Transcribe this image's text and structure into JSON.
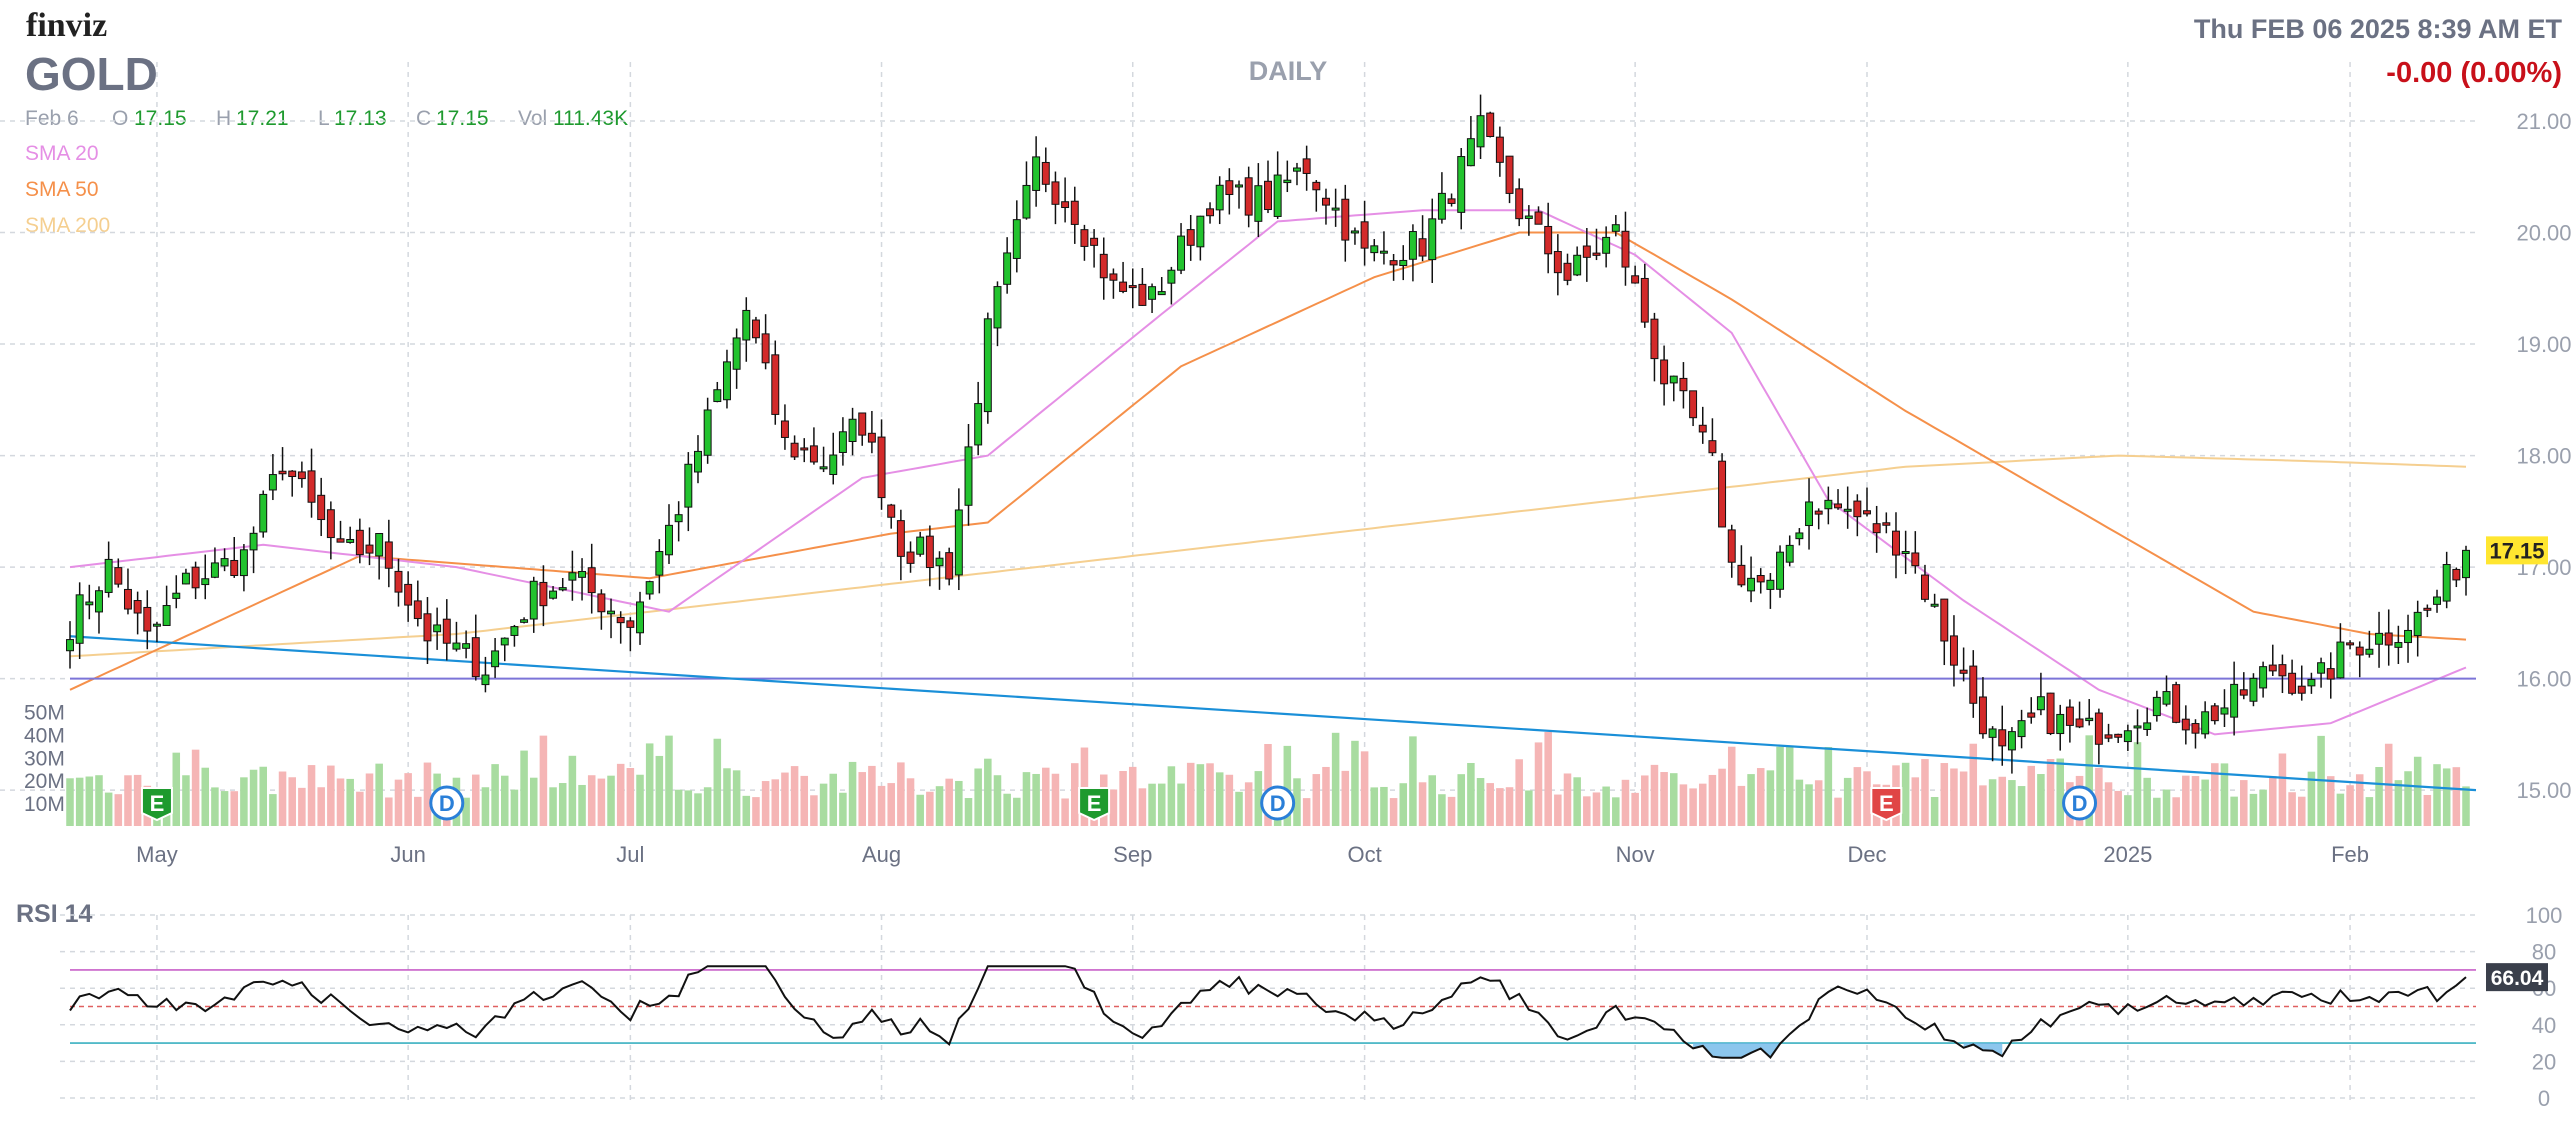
{
  "header": {
    "brand": "finviz",
    "ticker": "GOLD",
    "timeframe": "DAILY",
    "datetime": "Thu FEB 06 2025 8:39 AM ET",
    "change": "-0.00 (0.00%)"
  },
  "quote": {
    "date": "Feb 6",
    "o_label": "O",
    "o": "17.15",
    "h_label": "H",
    "h": "17.21",
    "l_label": "L",
    "l": "17.13",
    "c_label": "C",
    "c": "17.15",
    "vol_label": "Vol",
    "vol": "111.43K"
  },
  "legend": [
    "SMA 20",
    "SMA 50",
    "SMA 200"
  ],
  "colors": {
    "up": "#22c32e",
    "down": "#d32a2a",
    "vol_up": "#a8dca0",
    "vol_down": "#f5b5b5",
    "sma20": "#e58fe5",
    "sma50": "#f5904a",
    "sma200": "#f5cf90",
    "trendline": "#1a8fd8",
    "hline": "#7c74d8",
    "rsi_line": "#111111",
    "rsi_upper": "#c860c8",
    "rsi_mid": "#e06060",
    "rsi_lower": "#3ab0c0",
    "rsi_fill": "#6fb8e8",
    "last_price_bg": "#ffe630",
    "text_muted": "#9aa0ad",
    "brand_dark": "#222222",
    "neg_change": "#c8101a"
  },
  "chart_data": [
    {
      "type": "candlestick",
      "title": "GOLD",
      "x_range": [
        "2025-04-24",
        "2026-02-06"
      ],
      "ylim": [
        14.75,
        21.35
      ],
      "y_ticks": [
        "21.00",
        "20.00",
        "19.00",
        "18.00",
        "17.00",
        "16.00",
        "15.00"
      ],
      "month_labels": [
        "May",
        "Jun",
        "Jul",
        "Aug",
        "Sep",
        "Oct",
        "Nov",
        "Dec",
        "2025",
        "Feb"
      ],
      "last_price": "17.15",
      "horizontal_line": 16.0,
      "trendline": {
        "start": [
          "2025-04-24",
          16.38
        ],
        "end": [
          "2026-02-06",
          15.0
        ]
      },
      "close_anchors": [
        [
          0,
          16.5
        ],
        [
          4,
          17.0
        ],
        [
          8,
          16.35
        ],
        [
          12,
          16.85
        ],
        [
          18,
          17.1
        ],
        [
          22,
          17.95
        ],
        [
          28,
          17.1
        ],
        [
          32,
          17.2
        ],
        [
          37,
          16.4
        ],
        [
          43,
          16.1
        ],
        [
          48,
          16.75
        ],
        [
          52,
          16.9
        ],
        [
          58,
          16.5
        ],
        [
          63,
          17.55
        ],
        [
          70,
          19.3
        ],
        [
          74,
          18.1
        ],
        [
          78,
          17.95
        ],
        [
          82,
          18.3
        ],
        [
          86,
          17.2
        ],
        [
          91,
          17.0
        ],
        [
          95,
          19.1
        ],
        [
          100,
          20.6
        ],
        [
          104,
          20.2
        ],
        [
          108,
          19.5
        ],
        [
          112,
          19.4
        ],
        [
          118,
          20.3
        ],
        [
          124,
          20.3
        ],
        [
          128,
          20.6
        ],
        [
          134,
          19.8
        ],
        [
          140,
          19.9
        ],
        [
          146,
          20.9
        ],
        [
          150,
          20.2
        ],
        [
          155,
          19.6
        ],
        [
          160,
          20.0
        ],
        [
          165,
          18.7
        ],
        [
          168,
          18.3
        ],
        [
          170,
          17.9
        ],
        [
          172,
          17.0
        ],
        [
          176,
          16.8
        ],
        [
          180,
          17.6
        ],
        [
          184,
          17.5
        ],
        [
          190,
          17.2
        ],
        [
          194,
          16.4
        ],
        [
          197,
          15.8
        ],
        [
          200,
          15.3
        ],
        [
          204,
          15.7
        ],
        [
          208,
          15.5
        ],
        [
          212,
          15.6
        ],
        [
          216,
          15.8
        ],
        [
          220,
          15.6
        ],
        [
          224,
          15.8
        ],
        [
          228,
          16.1
        ],
        [
          232,
          15.9
        ],
        [
          236,
          16.3
        ],
        [
          240,
          16.4
        ],
        [
          244,
          16.6
        ],
        [
          248,
          17.15
        ]
      ],
      "sma20_anchors": [
        [
          0,
          17.0
        ],
        [
          20,
          17.2
        ],
        [
          40,
          17.0
        ],
        [
          62,
          16.6
        ],
        [
          82,
          17.8
        ],
        [
          95,
          18.0
        ],
        [
          112,
          19.2
        ],
        [
          125,
          20.1
        ],
        [
          140,
          20.2
        ],
        [
          152,
          20.2
        ],
        [
          162,
          19.8
        ],
        [
          172,
          19.1
        ],
        [
          182,
          17.6
        ],
        [
          196,
          16.7
        ],
        [
          210,
          15.9
        ],
        [
          222,
          15.5
        ],
        [
          234,
          15.6
        ],
        [
          248,
          16.1
        ]
      ],
      "sma50_anchors": [
        [
          0,
          15.9
        ],
        [
          30,
          17.1
        ],
        [
          60,
          16.9
        ],
        [
          85,
          17.3
        ],
        [
          95,
          17.4
        ],
        [
          115,
          18.8
        ],
        [
          135,
          19.6
        ],
        [
          150,
          20.0
        ],
        [
          160,
          20.0
        ],
        [
          172,
          19.4
        ],
        [
          190,
          18.4
        ],
        [
          210,
          17.4
        ],
        [
          226,
          16.6
        ],
        [
          238,
          16.4
        ],
        [
          248,
          16.35
        ]
      ],
      "sma200_anchors": [
        [
          0,
          16.2
        ],
        [
          40,
          16.4
        ],
        [
          80,
          16.8
        ],
        [
          120,
          17.2
        ],
        [
          160,
          17.6
        ],
        [
          190,
          17.9
        ],
        [
          212,
          18.0
        ],
        [
          232,
          17.95
        ],
        [
          248,
          17.9
        ]
      ]
    },
    {
      "type": "bar",
      "title": "Volume",
      "y_ticks": [
        "50M",
        "40M",
        "30M",
        "20M",
        "10M"
      ],
      "ylim": [
        0,
        55
      ],
      "unit": "M"
    },
    {
      "type": "line",
      "title": "RSI 14",
      "ylim": [
        0,
        100
      ],
      "y_ticks": [
        "100",
        "80",
        "60",
        "40",
        "20",
        "0"
      ],
      "overbought": 70,
      "middle": 50,
      "oversold": 30,
      "last_value": "66.04"
    }
  ],
  "earnings_markers": [
    {
      "label": "E",
      "type": "earnings",
      "index": 9
    },
    {
      "label": "D",
      "type": "dividend",
      "index": 39
    },
    {
      "label": "E",
      "type": "earnings",
      "index": 106
    },
    {
      "label": "D",
      "type": "dividend",
      "index": 125
    },
    {
      "label": "E",
      "type": "earnings",
      "index": 188
    },
    {
      "label": "D",
      "type": "dividend",
      "index": 208
    }
  ]
}
